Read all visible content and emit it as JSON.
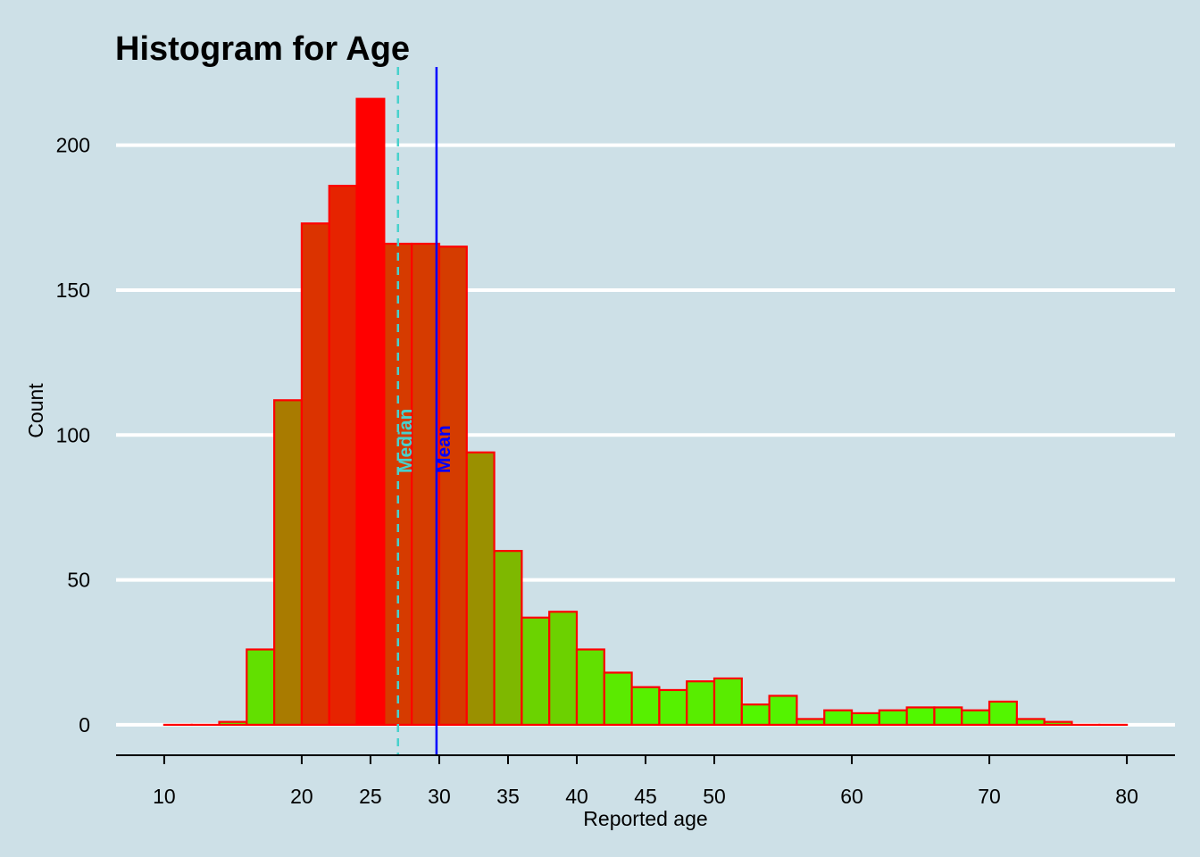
{
  "chart_data": {
    "type": "bar",
    "title": "Histogram for Age",
    "xlabel": "Reported age",
    "ylabel": "Count",
    "bin_width": 2,
    "bins": [
      {
        "start": 10,
        "end": 12,
        "value": 0
      },
      {
        "start": 12,
        "end": 14,
        "value": 0
      },
      {
        "start": 14,
        "end": 16,
        "value": 1
      },
      {
        "start": 16,
        "end": 18,
        "value": 26
      },
      {
        "start": 18,
        "end": 20,
        "value": 112
      },
      {
        "start": 20,
        "end": 22,
        "value": 173
      },
      {
        "start": 22,
        "end": 24,
        "value": 186
      },
      {
        "start": 24,
        "end": 26,
        "value": 216
      },
      {
        "start": 26,
        "end": 28,
        "value": 166
      },
      {
        "start": 28,
        "end": 30,
        "value": 166
      },
      {
        "start": 30,
        "end": 32,
        "value": 165
      },
      {
        "start": 32,
        "end": 34,
        "value": 94
      },
      {
        "start": 34,
        "end": 36,
        "value": 60
      },
      {
        "start": 36,
        "end": 38,
        "value": 37
      },
      {
        "start": 38,
        "end": 40,
        "value": 39
      },
      {
        "start": 40,
        "end": 42,
        "value": 26
      },
      {
        "start": 42,
        "end": 44,
        "value": 18
      },
      {
        "start": 44,
        "end": 46,
        "value": 13
      },
      {
        "start": 46,
        "end": 48,
        "value": 12
      },
      {
        "start": 48,
        "end": 50,
        "value": 15
      },
      {
        "start": 50,
        "end": 52,
        "value": 16
      },
      {
        "start": 52,
        "end": 54,
        "value": 7
      },
      {
        "start": 54,
        "end": 56,
        "value": 10
      },
      {
        "start": 56,
        "end": 58,
        "value": 2
      },
      {
        "start": 58,
        "end": 60,
        "value": 5
      },
      {
        "start": 60,
        "end": 62,
        "value": 4
      },
      {
        "start": 62,
        "end": 64,
        "value": 5
      },
      {
        "start": 64,
        "end": 66,
        "value": 6
      },
      {
        "start": 66,
        "end": 68,
        "value": 6
      },
      {
        "start": 68,
        "end": 70,
        "value": 5
      },
      {
        "start": 70,
        "end": 72,
        "value": 8
      },
      {
        "start": 72,
        "end": 74,
        "value": 2
      },
      {
        "start": 74,
        "end": 76,
        "value": 1
      },
      {
        "start": 76,
        "end": 78,
        "value": 0
      },
      {
        "start": 78,
        "end": 80,
        "value": 0
      }
    ],
    "x_ticks": [
      10,
      20,
      25,
      30,
      35,
      40,
      45,
      50,
      60,
      70,
      80
    ],
    "y_ticks": [
      0,
      50,
      100,
      150,
      200
    ],
    "xlim": [
      6.5,
      83.5
    ],
    "ylim": [
      -10.5,
      227
    ],
    "grid": "horizontal",
    "fill_gradient": {
      "low": "#4cff00",
      "high": "#ff0000"
    },
    "bar_outline_color": "#ff0000",
    "background_color": "#cde0e7",
    "reference_lines": [
      {
        "label": "Median",
        "x": 27,
        "style": "dashed",
        "color": "#48d1cc"
      },
      {
        "label": "Mean",
        "x": 29.8,
        "style": "solid",
        "color": "#0000ff"
      }
    ]
  }
}
